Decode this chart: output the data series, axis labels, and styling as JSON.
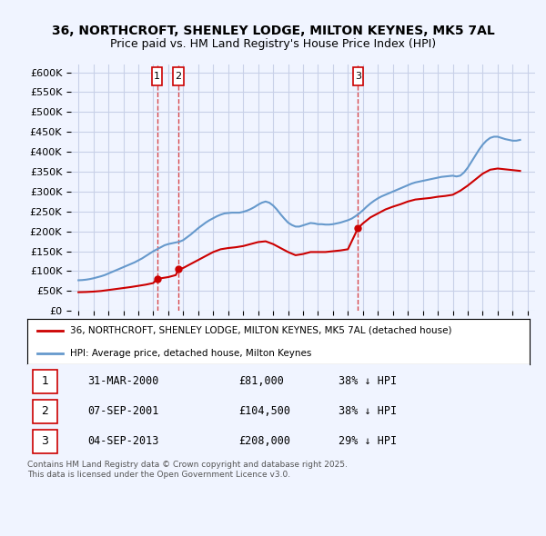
{
  "title": "36, NORTHCROFT, SHENLEY LODGE, MILTON KEYNES, MK5 7AL",
  "subtitle": "Price paid vs. HM Land Registry's House Price Index (HPI)",
  "xlabel": "",
  "ylabel": "",
  "ylim": [
    0,
    620000
  ],
  "yticks": [
    0,
    50000,
    100000,
    150000,
    200000,
    250000,
    300000,
    350000,
    400000,
    450000,
    500000,
    550000,
    600000
  ],
  "ytick_labels": [
    "£0",
    "£50K",
    "£100K",
    "£150K",
    "£200K",
    "£250K",
    "£300K",
    "£350K",
    "£400K",
    "£450K",
    "£500K",
    "£550K",
    "£600K"
  ],
  "xlim_left": 1994.5,
  "xlim_right": 2025.5,
  "bg_color": "#f0f4ff",
  "plot_bg_color": "#f0f4ff",
  "grid_color": "#c8d0e8",
  "red_color": "#cc0000",
  "blue_color": "#6699cc",
  "legend_red_label": "36, NORTHCROFT, SHENLEY LODGE, MILTON KEYNES, MK5 7AL (detached house)",
  "legend_blue_label": "HPI: Average price, detached house, Milton Keynes",
  "sale_dates": [
    2000.25,
    2001.68,
    2013.67
  ],
  "sale_prices": [
    81000,
    104500,
    208000
  ],
  "sale_labels": [
    "1",
    "2",
    "3"
  ],
  "sale_date_strs": [
    "31-MAR-2000",
    "07-SEP-2001",
    "04-SEP-2013"
  ],
  "sale_price_strs": [
    "£81,000",
    "£104,500",
    "£208,000"
  ],
  "sale_hpi_strs": [
    "38% ↓ HPI",
    "38% ↓ HPI",
    "29% ↓ HPI"
  ],
  "footnote": "Contains HM Land Registry data © Crown copyright and database right 2025.\nThis data is licensed under the Open Government Licence v3.0.",
  "hpi_x": [
    1995.0,
    1995.25,
    1995.5,
    1995.75,
    1996.0,
    1996.25,
    1996.5,
    1996.75,
    1997.0,
    1997.25,
    1997.5,
    1997.75,
    1998.0,
    1998.25,
    1998.5,
    1998.75,
    1999.0,
    1999.25,
    1999.5,
    1999.75,
    2000.0,
    2000.25,
    2000.5,
    2000.75,
    2001.0,
    2001.25,
    2001.5,
    2001.75,
    2002.0,
    2002.25,
    2002.5,
    2002.75,
    2003.0,
    2003.25,
    2003.5,
    2003.75,
    2004.0,
    2004.25,
    2004.5,
    2004.75,
    2005.0,
    2005.25,
    2005.5,
    2005.75,
    2006.0,
    2006.25,
    2006.5,
    2006.75,
    2007.0,
    2007.25,
    2007.5,
    2007.75,
    2008.0,
    2008.25,
    2008.5,
    2008.75,
    2009.0,
    2009.25,
    2009.5,
    2009.75,
    2010.0,
    2010.25,
    2010.5,
    2010.75,
    2011.0,
    2011.25,
    2011.5,
    2011.75,
    2012.0,
    2012.25,
    2012.5,
    2012.75,
    2013.0,
    2013.25,
    2013.5,
    2013.75,
    2014.0,
    2014.25,
    2014.5,
    2014.75,
    2015.0,
    2015.25,
    2015.5,
    2015.75,
    2016.0,
    2016.25,
    2016.5,
    2016.75,
    2017.0,
    2017.25,
    2017.5,
    2017.75,
    2018.0,
    2018.25,
    2018.5,
    2018.75,
    2019.0,
    2019.25,
    2019.5,
    2019.75,
    2020.0,
    2020.25,
    2020.5,
    2020.75,
    2021.0,
    2021.25,
    2021.5,
    2021.75,
    2022.0,
    2022.25,
    2022.5,
    2022.75,
    2023.0,
    2023.25,
    2023.5,
    2023.75,
    2024.0,
    2024.25,
    2024.5
  ],
  "hpi_y": [
    77000,
    77500,
    78500,
    80000,
    82000,
    84500,
    87000,
    90000,
    94000,
    98000,
    102000,
    106000,
    110000,
    114000,
    118000,
    122000,
    127000,
    132000,
    138000,
    144000,
    150000,
    155000,
    160000,
    165000,
    168000,
    170000,
    172000,
    174000,
    178000,
    185000,
    192000,
    200000,
    208000,
    215000,
    222000,
    228000,
    233000,
    238000,
    242000,
    245000,
    246000,
    247000,
    247000,
    247000,
    249000,
    252000,
    256000,
    261000,
    267000,
    272000,
    275000,
    272000,
    265000,
    255000,
    243000,
    232000,
    222000,
    216000,
    212000,
    212000,
    215000,
    218000,
    221000,
    220000,
    218000,
    218000,
    217000,
    217000,
    218000,
    220000,
    222000,
    225000,
    228000,
    232000,
    238000,
    245000,
    253000,
    262000,
    270000,
    277000,
    283000,
    288000,
    292000,
    296000,
    300000,
    304000,
    308000,
    312000,
    316000,
    320000,
    323000,
    325000,
    327000,
    329000,
    331000,
    333000,
    335000,
    337000,
    338000,
    339000,
    340000,
    338000,
    340000,
    348000,
    360000,
    375000,
    390000,
    405000,
    418000,
    428000,
    435000,
    438000,
    438000,
    435000,
    432000,
    430000,
    428000,
    428000,
    430000
  ],
  "prop_x": [
    1995.0,
    1995.5,
    1996.0,
    1996.5,
    1997.0,
    1997.5,
    1998.0,
    1998.5,
    1999.0,
    1999.5,
    2000.0,
    2000.25,
    2000.5,
    2001.0,
    2001.5,
    2001.68,
    2002.0,
    2002.5,
    2003.0,
    2003.5,
    2004.0,
    2004.5,
    2005.0,
    2005.5,
    2006.0,
    2006.5,
    2007.0,
    2007.5,
    2008.0,
    2008.5,
    2009.0,
    2009.5,
    2010.0,
    2010.5,
    2011.0,
    2011.5,
    2012.0,
    2012.5,
    2013.0,
    2013.67,
    2014.0,
    2014.5,
    2015.0,
    2015.5,
    2016.0,
    2016.5,
    2017.0,
    2017.5,
    2018.0,
    2018.5,
    2019.0,
    2019.5,
    2020.0,
    2020.5,
    2021.0,
    2021.5,
    2022.0,
    2022.5,
    2023.0,
    2023.5,
    2024.0,
    2024.5
  ],
  "prop_y": [
    47000,
    47500,
    48500,
    50000,
    52500,
    55000,
    57500,
    60000,
    63000,
    66000,
    70000,
    81000,
    82000,
    85000,
    90000,
    104500,
    108000,
    118000,
    128000,
    138000,
    148000,
    155000,
    158000,
    160000,
    163000,
    168000,
    173000,
    175000,
    168000,
    158000,
    148000,
    140000,
    143000,
    148000,
    148000,
    148000,
    150000,
    152000,
    155000,
    208000,
    220000,
    235000,
    245000,
    255000,
    262000,
    268000,
    275000,
    280000,
    282000,
    284000,
    287000,
    289000,
    292000,
    302000,
    315000,
    330000,
    345000,
    355000,
    358000,
    356000,
    354000,
    352000
  ]
}
